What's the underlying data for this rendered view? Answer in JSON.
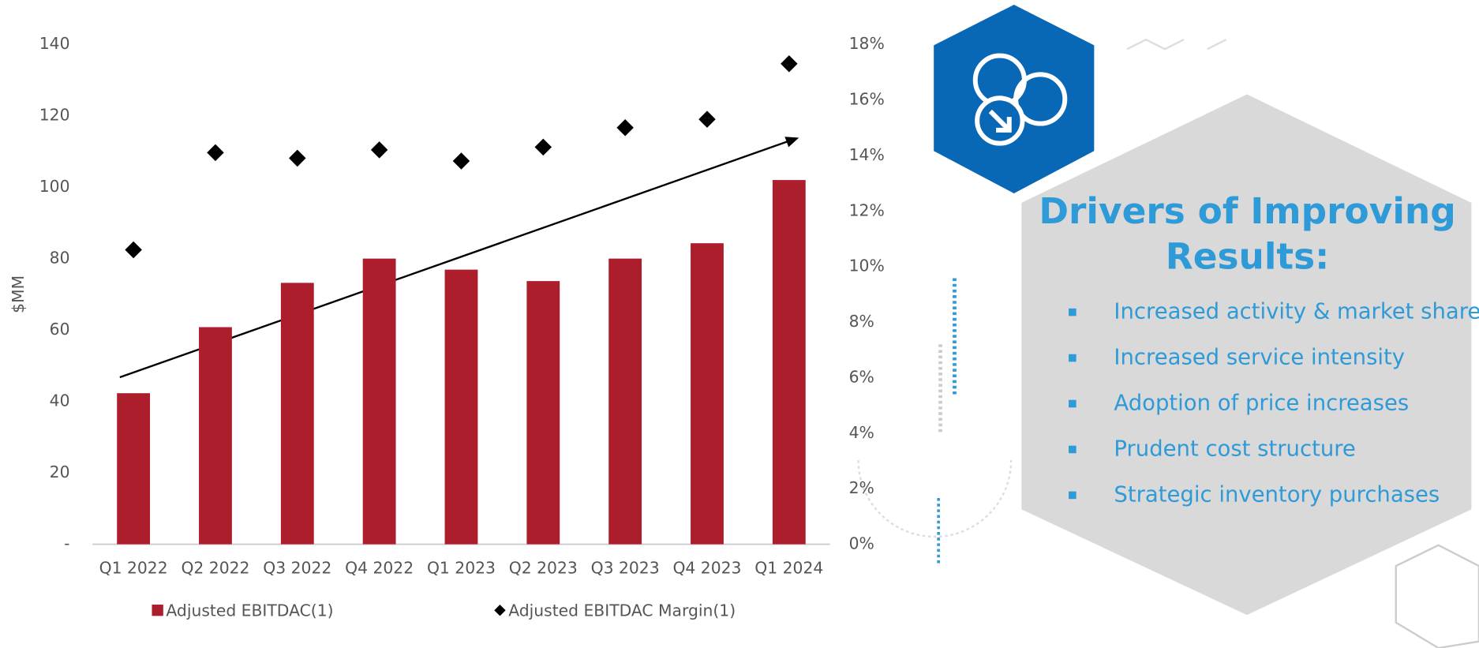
{
  "chart_data": {
    "type": "bar",
    "y_label": "$MM",
    "categories": [
      "Q1 2022",
      "Q2 2022",
      "Q3 2022",
      "Q4 2022",
      "Q1 2023",
      "Q2 2023",
      "Q3 2023",
      "Q4 2023",
      "Q1 2024"
    ],
    "series": [
      {
        "name": "Adjusted EBITDAC(1)",
        "type": "bar",
        "color": "#ad1e2d",
        "values": [
          42.3,
          60.8,
          73.2,
          80.0,
          76.9,
          73.7,
          80.0,
          84.3,
          102.0
        ]
      },
      {
        "name": "Adjusted EBITDAC Margin(1)",
        "type": "scatter",
        "axis": "y2",
        "color": "#000000",
        "values": [
          10.6,
          14.1,
          13.9,
          14.2,
          13.8,
          14.3,
          15.0,
          15.3,
          17.3
        ]
      }
    ],
    "ylim": [
      0,
      140
    ],
    "yticks": [
      {
        "value": 0,
        "label": "-"
      },
      20,
      40,
      60,
      80,
      100,
      120,
      140
    ],
    "y2lim": [
      0,
      18
    ],
    "y2ticks": [
      {
        "value": 0,
        "label": "0%"
      },
      {
        "value": 2,
        "label": "2%"
      },
      {
        "value": 4,
        "label": "4%"
      },
      {
        "value": 6,
        "label": "6%"
      },
      {
        "value": 8,
        "label": "8%"
      },
      {
        "value": 10,
        "label": "10%"
      },
      {
        "value": 12,
        "label": "12%"
      },
      {
        "value": 14,
        "label": "14%"
      },
      {
        "value": 16,
        "label": "16%"
      },
      {
        "value": 18,
        "label": "18%"
      }
    ],
    "grid": false
  },
  "panel": {
    "title": "Drivers of Improving Results:",
    "bullets": [
      "Increased activity & market share",
      "Increased service intensity",
      "Adoption of price increases",
      "Prudent cost structure",
      "Strategic inventory purchases"
    ]
  }
}
